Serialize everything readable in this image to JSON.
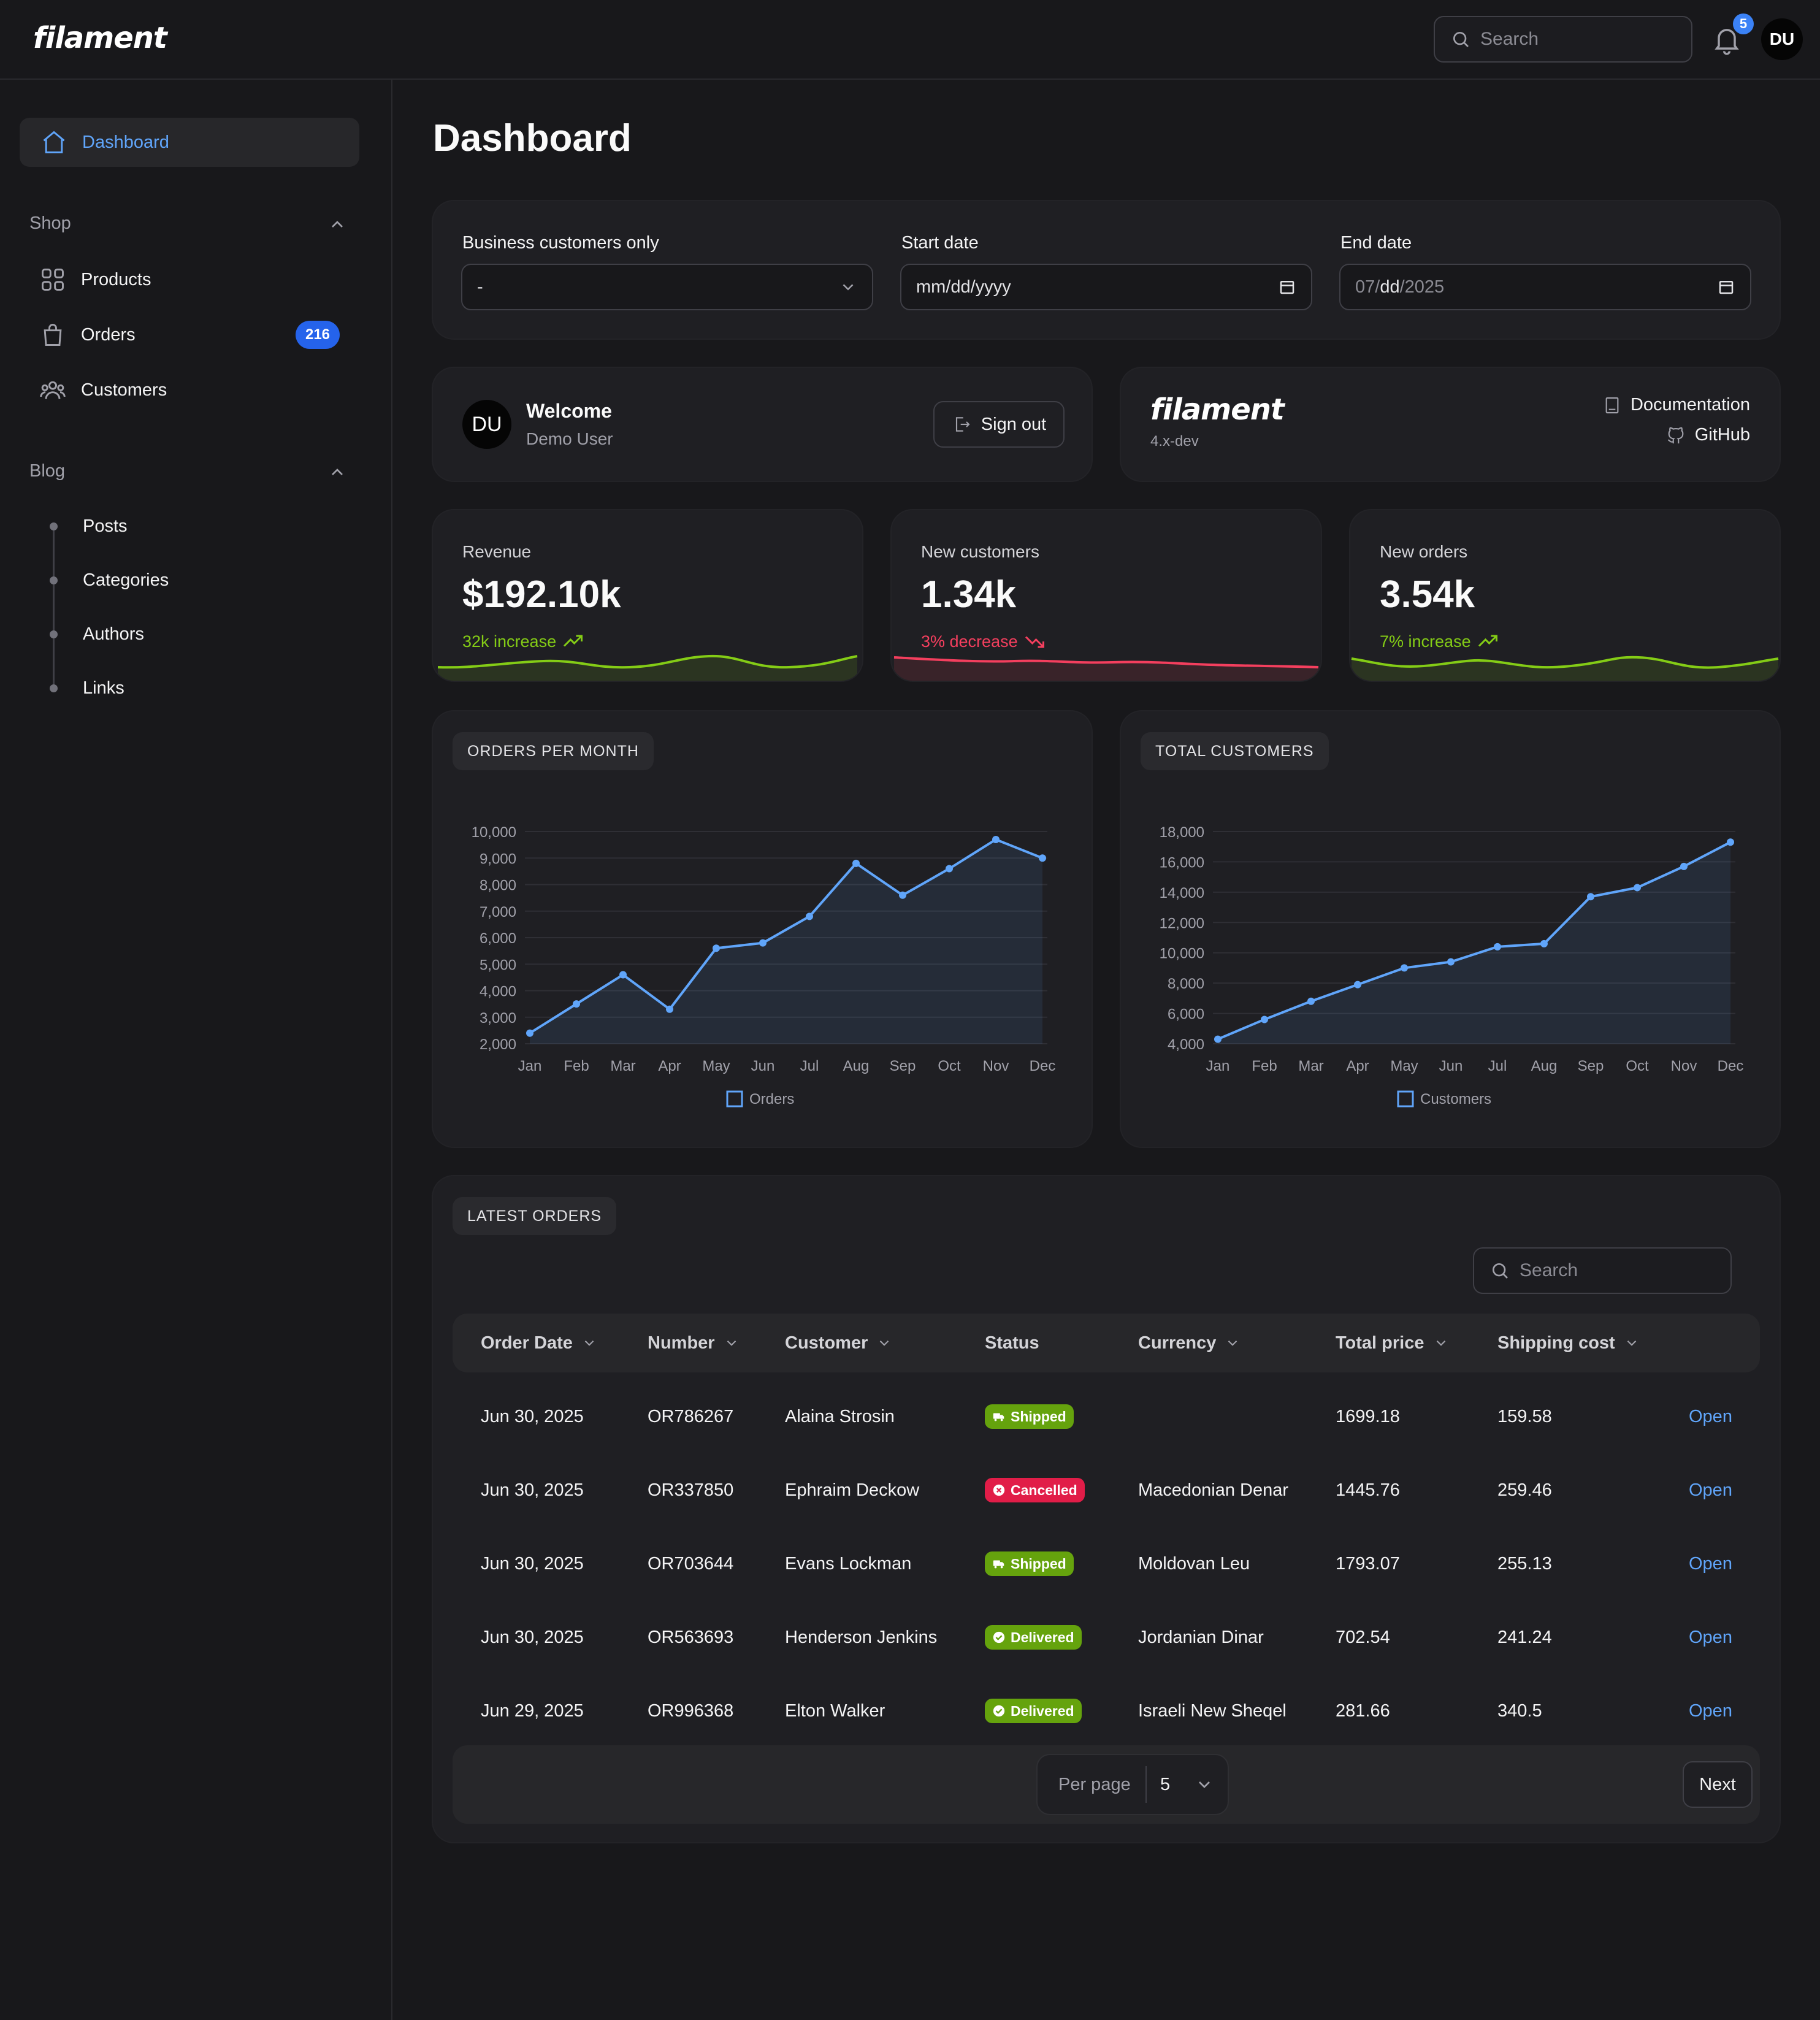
{
  "app": {
    "brand": "filament"
  },
  "topbar": {
    "search_placeholder": "Search",
    "notification_count": "5",
    "avatar_initials": "DU"
  },
  "sidebar": {
    "dashboard": "Dashboard",
    "shop_group": "Shop",
    "shop_items": [
      {
        "label": "Products",
        "icon": "grid-icon"
      },
      {
        "label": "Orders",
        "icon": "shopping-bag-icon",
        "badge": "216"
      },
      {
        "label": "Customers",
        "icon": "users-icon"
      }
    ],
    "blog_group": "Blog",
    "blog_items": [
      "Posts",
      "Categories",
      "Authors",
      "Links"
    ]
  },
  "page": {
    "title": "Dashboard"
  },
  "filters": {
    "business": {
      "label": "Business customers only",
      "value": "-"
    },
    "start": {
      "label": "Start date",
      "value": "mm/dd/yyyy"
    },
    "end": {
      "label": "End date",
      "value_prefix": "07/",
      "value_mid": "dd",
      "value_suffix": "/2025"
    }
  },
  "welcome": {
    "initials": "DU",
    "title": "Welcome",
    "user": "Demo User",
    "signout": "Sign out"
  },
  "info": {
    "brand": "filament",
    "version": "4.x-dev",
    "docs": "Documentation",
    "github": "GitHub"
  },
  "stats": [
    {
      "label": "Revenue",
      "value": "$192.10k",
      "desc": "32k increase",
      "trend": "up",
      "color": "#84cc16"
    },
    {
      "label": "New customers",
      "value": "1.34k",
      "desc": "3% decrease",
      "trend": "down",
      "color": "#f43f5e"
    },
    {
      "label": "New orders",
      "value": "3.54k",
      "desc": "7% increase",
      "trend": "up",
      "color": "#84cc16"
    }
  ],
  "chart_data": [
    {
      "type": "line",
      "title": "ORDERS PER MONTH",
      "categories": [
        "Jan",
        "Feb",
        "Mar",
        "Apr",
        "May",
        "Jun",
        "Jul",
        "Aug",
        "Sep",
        "Oct",
        "Nov",
        "Dec"
      ],
      "series": [
        {
          "name": "Orders",
          "values": [
            2400,
            3500,
            4600,
            3300,
            5600,
            5800,
            6800,
            8800,
            7600,
            8600,
            9700,
            9000
          ]
        }
      ],
      "ylim": [
        2000,
        10000
      ],
      "yticks": [
        "2,000",
        "3,000",
        "4,000",
        "5,000",
        "6,000",
        "7,000",
        "8,000",
        "9,000",
        "10,000"
      ],
      "grid": true,
      "legend": "bottom",
      "color": "#60a5fa"
    },
    {
      "type": "line",
      "title": "TOTAL CUSTOMERS",
      "categories": [
        "Jan",
        "Feb",
        "Mar",
        "Apr",
        "May",
        "Jun",
        "Jul",
        "Aug",
        "Sep",
        "Oct",
        "Nov",
        "Dec"
      ],
      "series": [
        {
          "name": "Customers",
          "values": [
            4300,
            5600,
            6800,
            7900,
            9000,
            9400,
            10400,
            10600,
            13700,
            14300,
            15700,
            17300
          ]
        }
      ],
      "ylim": [
        4000,
        18000
      ],
      "yticks": [
        "4,000",
        "6,000",
        "8,000",
        "10,000",
        "12,000",
        "14,000",
        "16,000",
        "18,000"
      ],
      "grid": true,
      "legend": "bottom",
      "color": "#60a5fa"
    }
  ],
  "orders": {
    "title": "LATEST ORDERS",
    "search_placeholder": "Search",
    "columns": [
      "Order Date",
      "Number",
      "Customer",
      "Status",
      "Currency",
      "Total price",
      "Shipping cost"
    ],
    "rows": [
      {
        "date": "Jun 30, 2025",
        "number": "OR786267",
        "customer": "Alaina Strosin",
        "status": "Shipped",
        "currency": "",
        "total": "1699.18",
        "shipping": "159.58",
        "action": "Open"
      },
      {
        "date": "Jun 30, 2025",
        "number": "OR337850",
        "customer": "Ephraim Deckow",
        "status": "Cancelled",
        "currency": "Macedonian Denar",
        "total": "1445.76",
        "shipping": "259.46",
        "action": "Open"
      },
      {
        "date": "Jun 30, 2025",
        "number": "OR703644",
        "customer": "Evans Lockman",
        "status": "Shipped",
        "currency": "Moldovan Leu",
        "total": "1793.07",
        "shipping": "255.13",
        "action": "Open"
      },
      {
        "date": "Jun 30, 2025",
        "number": "OR563693",
        "customer": "Henderson Jenkins",
        "status": "Delivered",
        "currency": "Jordanian Dinar",
        "total": "702.54",
        "shipping": "241.24",
        "action": "Open"
      },
      {
        "date": "Jun 29, 2025",
        "number": "OR996368",
        "customer": "Elton Walker",
        "status": "Delivered",
        "currency": "Israeli New Sheqel",
        "total": "281.66",
        "shipping": "340.5",
        "action": "Open"
      }
    ],
    "per_page_label": "Per page",
    "per_page_value": "5",
    "next": "Next"
  }
}
